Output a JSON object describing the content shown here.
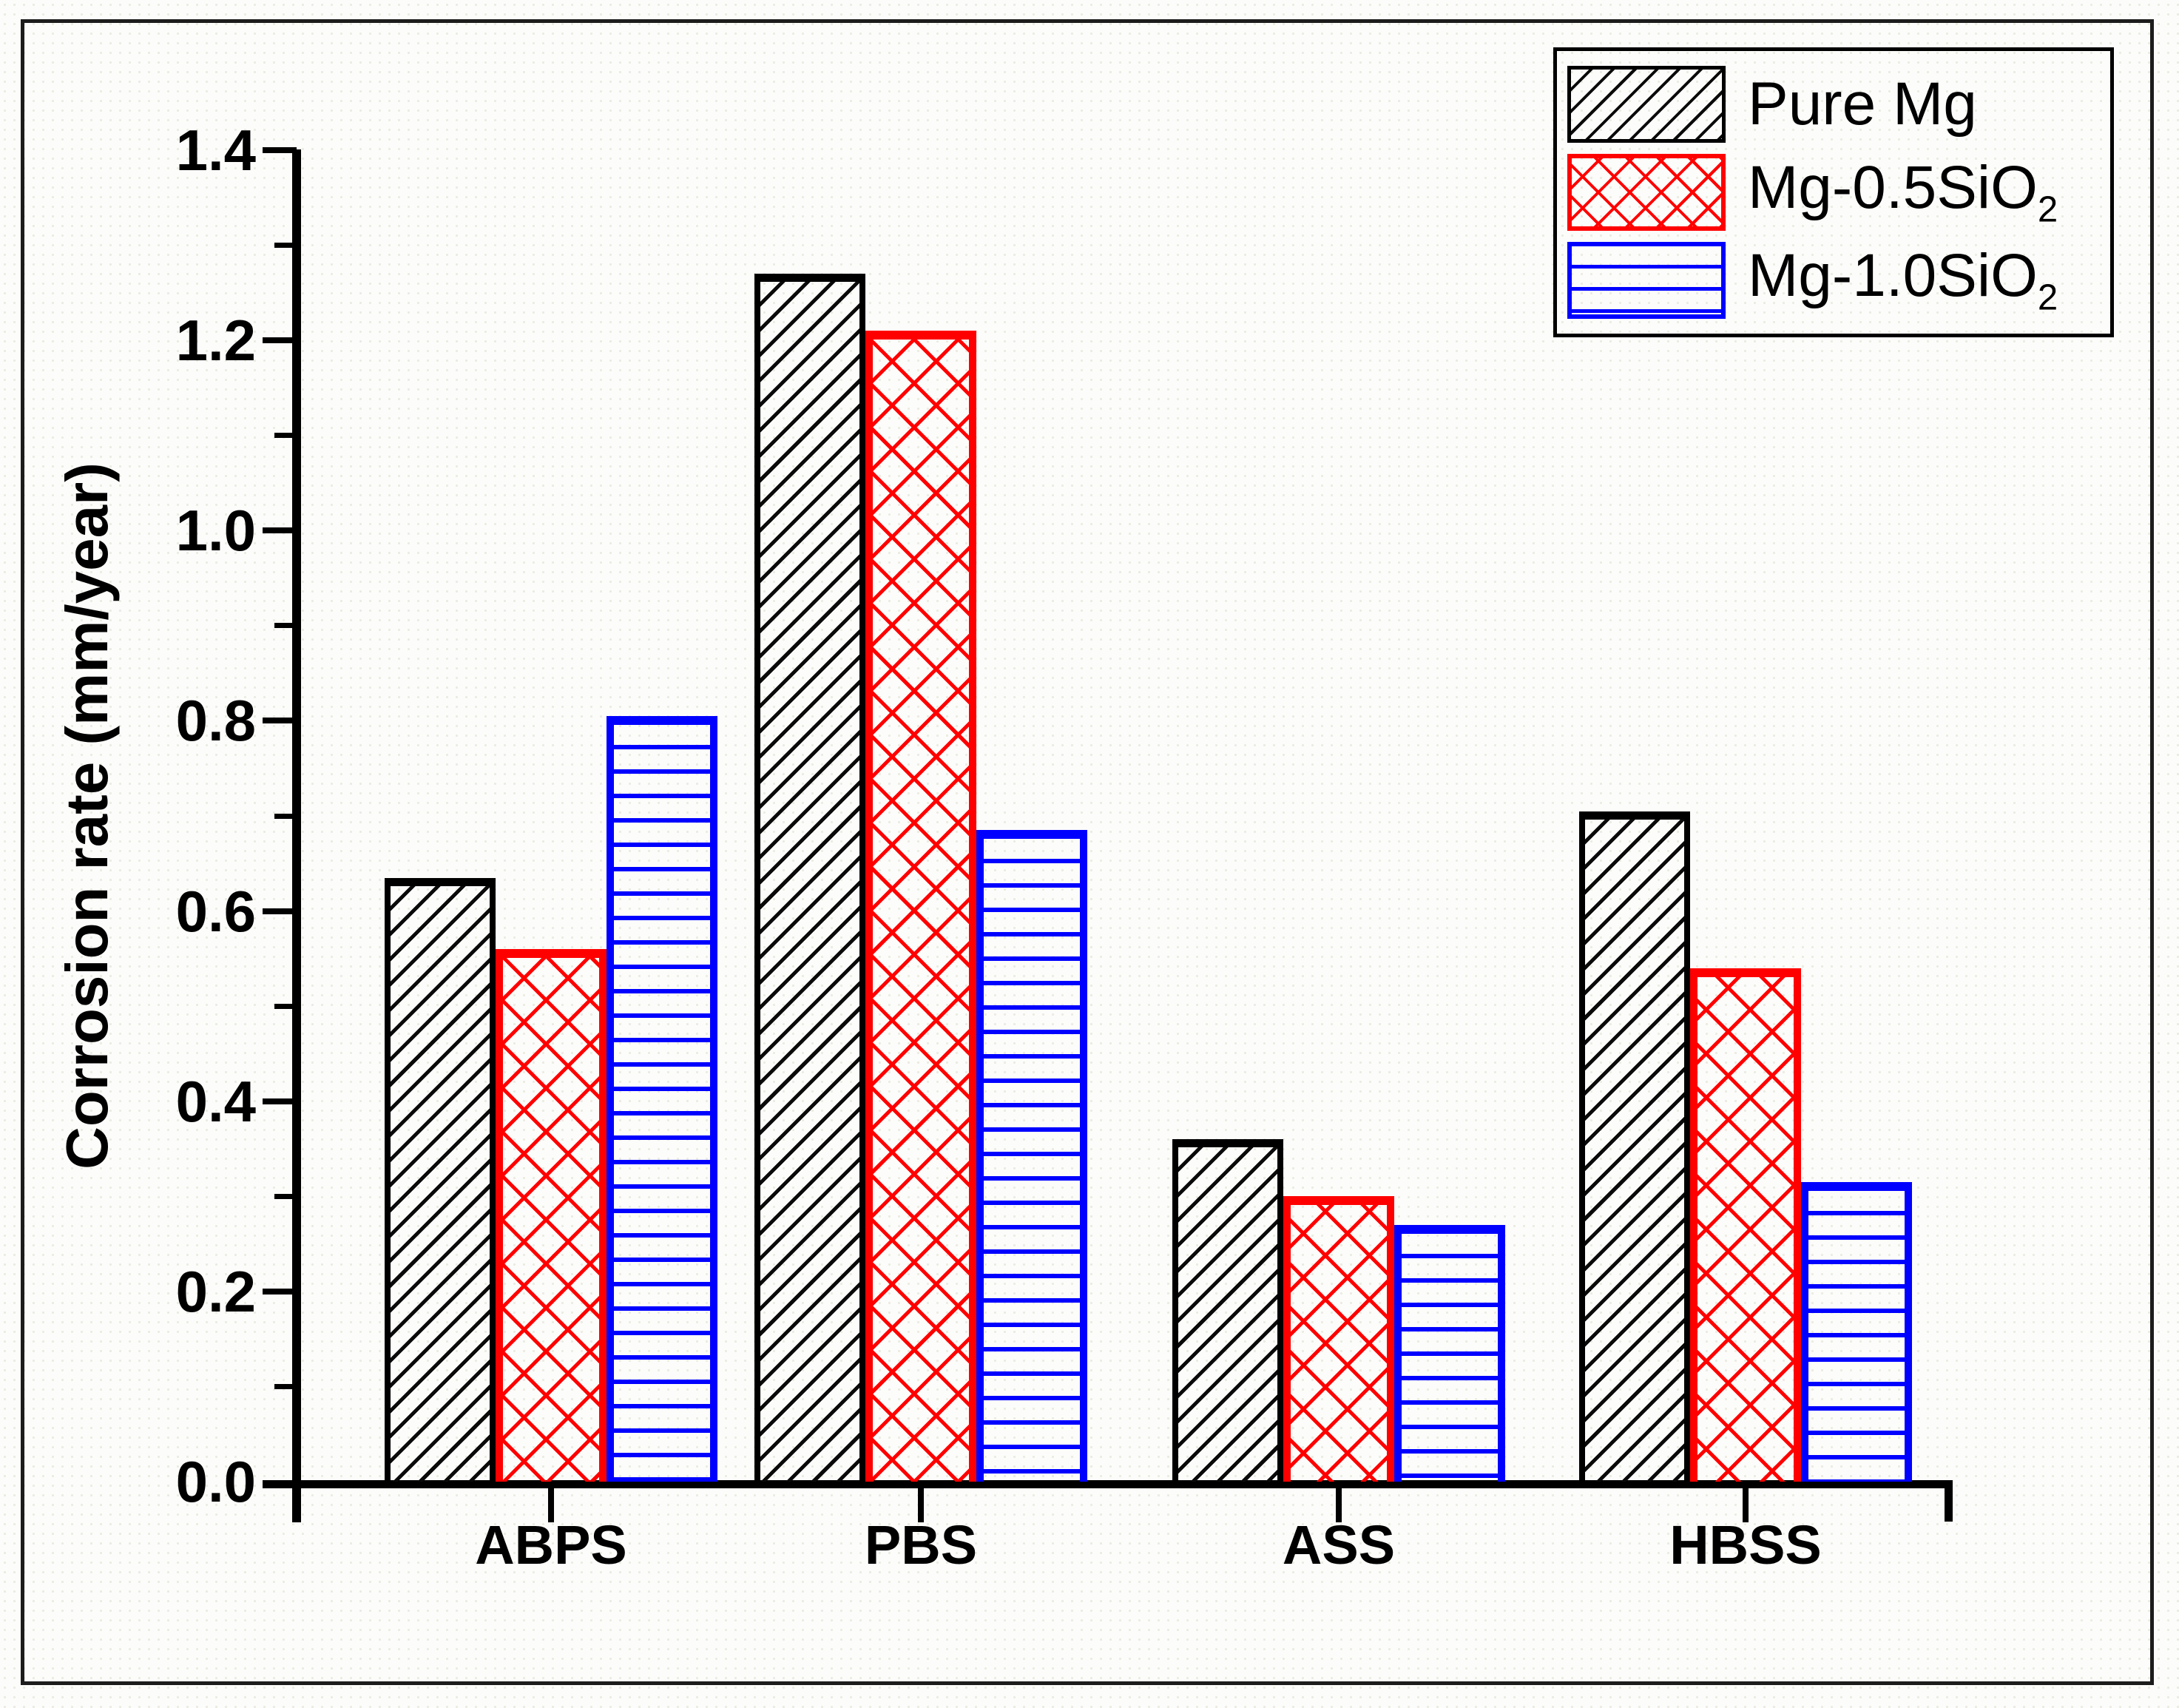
{
  "figure": {
    "background": "#fcfcfa",
    "frame_color": "#1c1c1c",
    "axis_color": "#000000"
  },
  "chart_data": {
    "type": "bar",
    "title": "",
    "xlabel": "",
    "ylabel": "Corrosion rate (mm/year)",
    "ylim": [
      0.0,
      1.4
    ],
    "grid": false,
    "legend_position": "top-right",
    "y_major_ticks": [
      "0.0",
      "0.2",
      "0.4",
      "0.6",
      "0.8",
      "1.0",
      "1.2",
      "1.4"
    ],
    "y_minor_step": 0.1,
    "categories": [
      "ABPS",
      "PBS",
      "ASS",
      "HBSS"
    ],
    "series": [
      {
        "name": "Pure Mg",
        "name_base": "Pure Mg",
        "name_sub": "",
        "color": "#000000",
        "pattern": "diagonal-hatch",
        "values": [
          0.635,
          1.27,
          0.36,
          0.705
        ]
      },
      {
        "name": "Mg-0.5SiO2",
        "name_base": "Mg-0.5SiO",
        "name_sub": "2",
        "color": "#ff0000",
        "pattern": "cross-hatch",
        "values": [
          0.56,
          1.21,
          0.3,
          0.54
        ]
      },
      {
        "name": "Mg-1.0SiO2",
        "name_base": "Mg-1.0SiO",
        "name_sub": "2",
        "color": "#0000ff",
        "pattern": "horizontal-lines",
        "values": [
          0.805,
          0.685,
          0.27,
          0.315
        ]
      }
    ]
  }
}
